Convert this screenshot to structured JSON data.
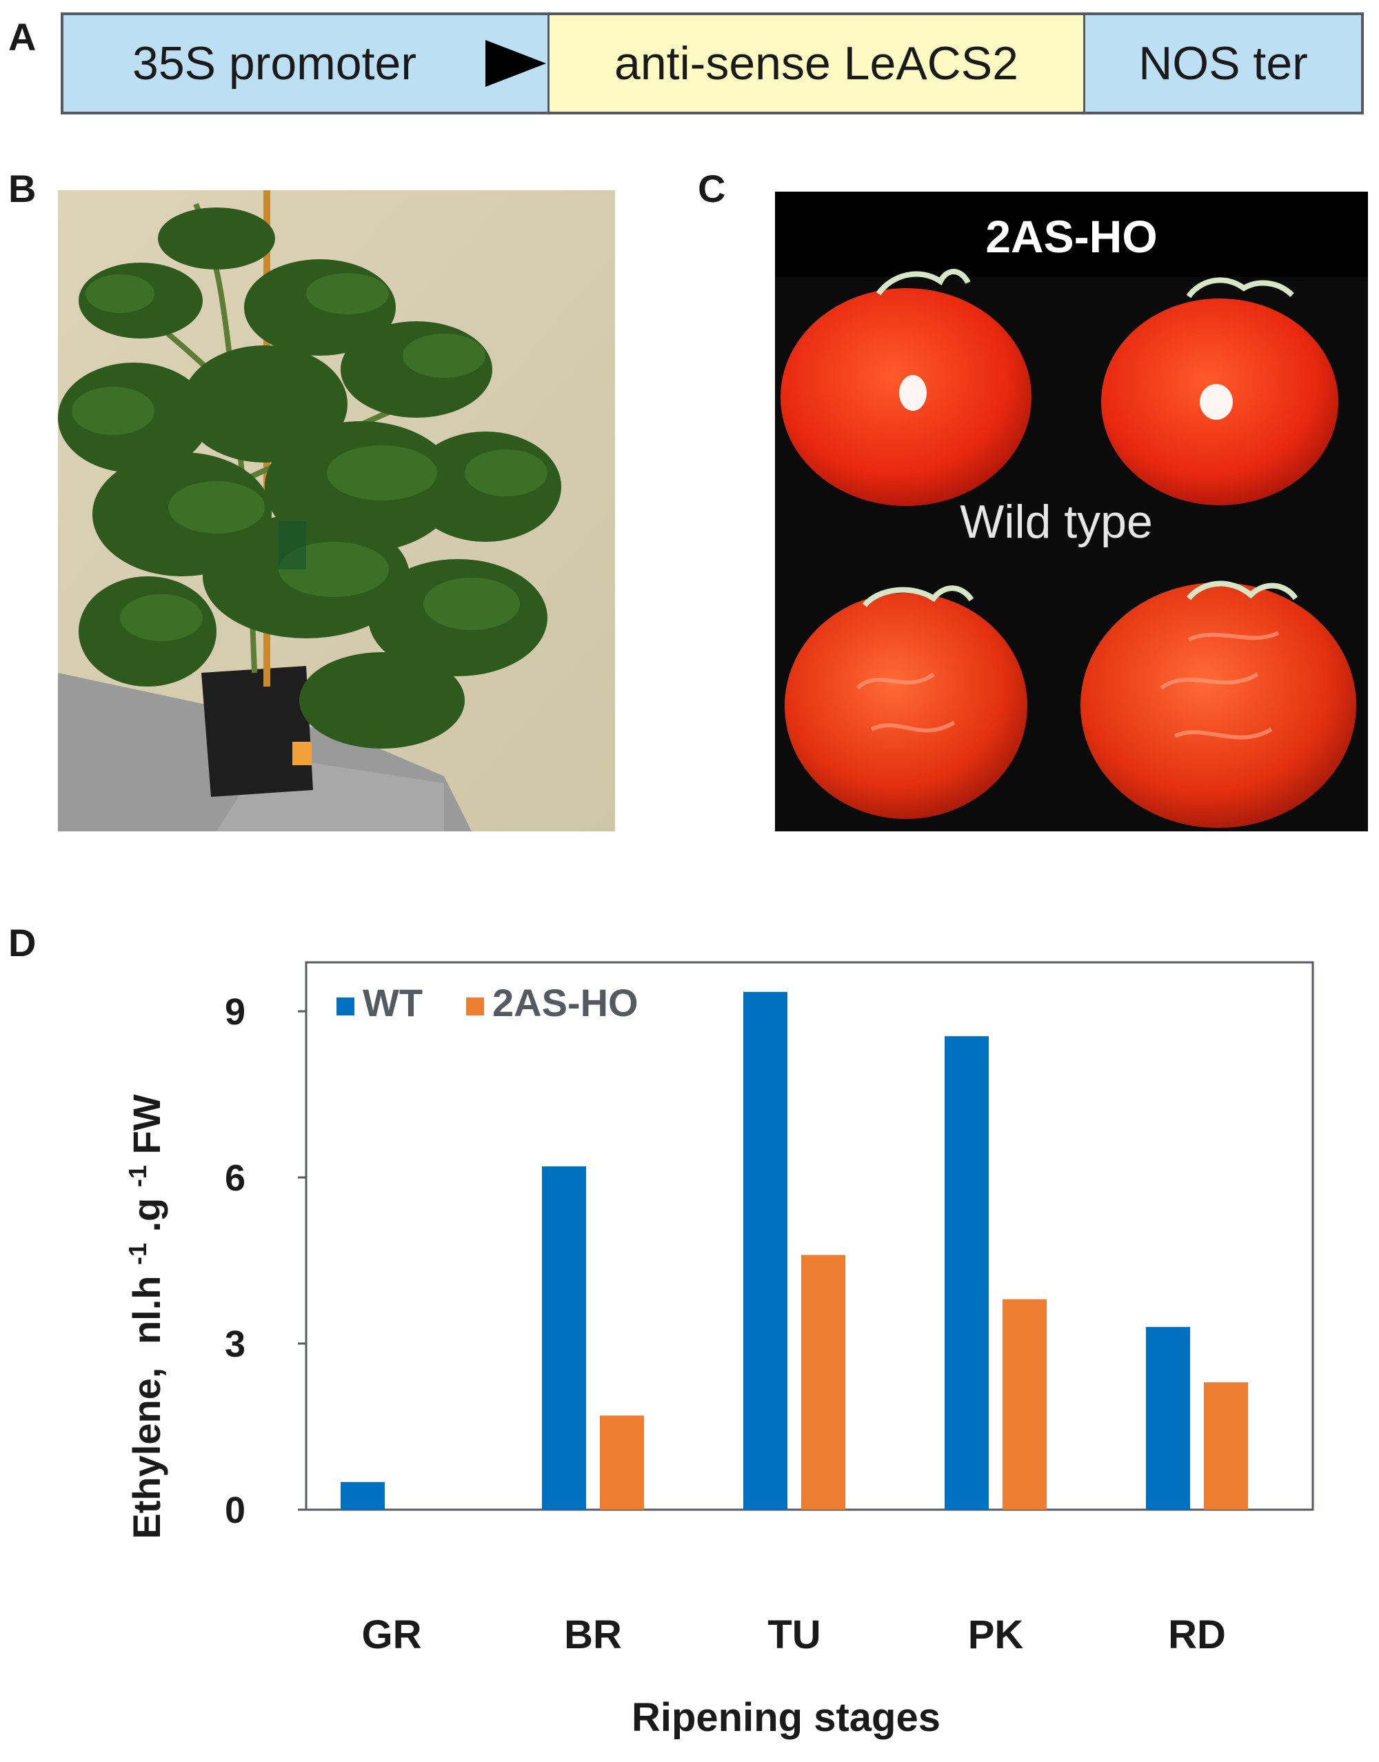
{
  "panel_labels": {
    "a": "A",
    "b": "B",
    "c": "C",
    "d": "D"
  },
  "construct": {
    "promoter": "35S promoter",
    "gene": "anti-sense LeACS2",
    "terminator": "NOS ter"
  },
  "photo_c": {
    "title": "2AS-HO",
    "caption": "Wild type"
  },
  "colors": {
    "wt": "#0070c0",
    "mutant": "#ed7d31",
    "promoter_fill": "#bcdff4",
    "gene_fill": "#fdfac3"
  },
  "chart_data": {
    "type": "bar",
    "categories": [
      "GR",
      "BR",
      "TU",
      "PK",
      "RD"
    ],
    "series": [
      {
        "name": "WT",
        "values": [
          0.5,
          6.2,
          9.35,
          8.55,
          3.3
        ]
      },
      {
        "name": "2AS-HO",
        "values": [
          0,
          1.7,
          4.6,
          3.8,
          2.3
        ]
      }
    ],
    "xlabel": "Ripening stages",
    "ylabel": "Ethylene,",
    "ylabel_units": {
      "base": "nl.h",
      "exp1": "-1",
      "mid": ".g",
      "exp2": "-1",
      "end": "FW"
    },
    "yticks": [
      0,
      3,
      6,
      9
    ],
    "ylim": [
      0,
      10
    ],
    "legend_position": "top-left",
    "grid": false
  }
}
